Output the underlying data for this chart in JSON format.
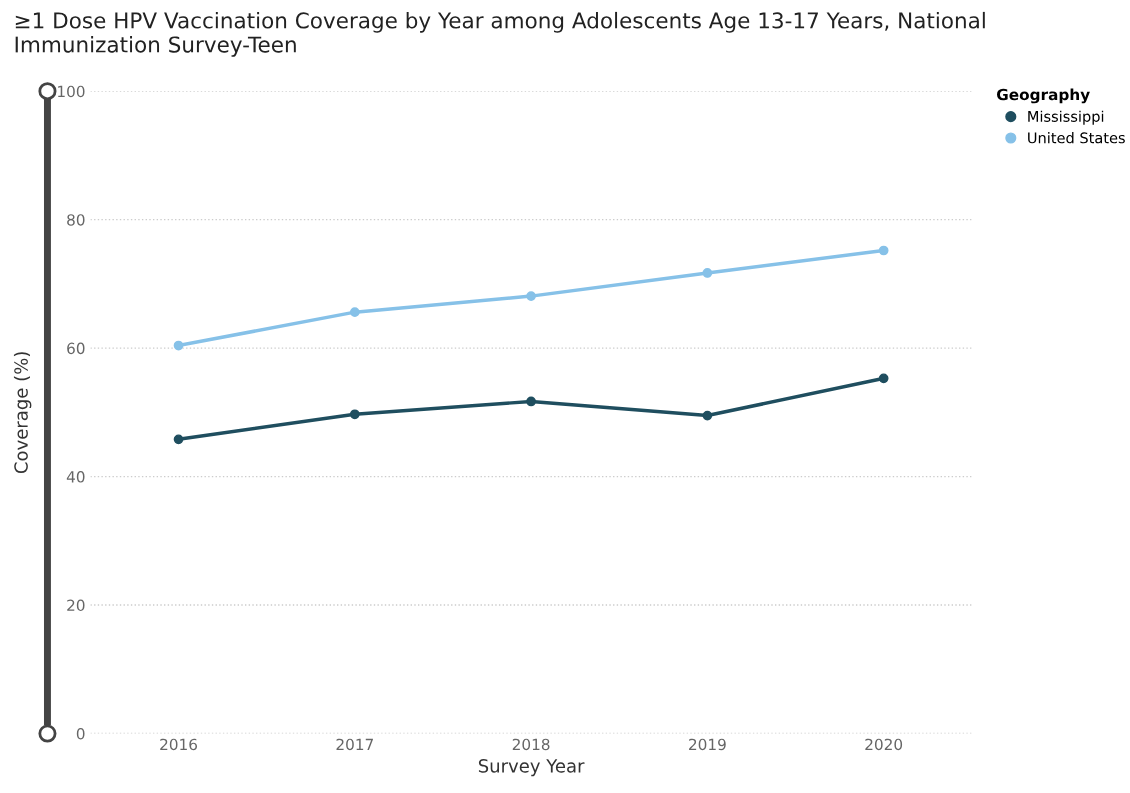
{
  "chart_data": {
    "type": "line",
    "title": "≥1 Dose HPV Vaccination Coverage by Year among Adolescents Age 13-17 Years, National Immunization Survey-Teen",
    "xlabel": "Survey Year",
    "ylabel": "Coverage (%)",
    "legend_title": "Geography",
    "categories": [
      "2016",
      "2017",
      "2018",
      "2019",
      "2020"
    ],
    "series": [
      {
        "name": "Mississippi",
        "color": "#1f4e5f",
        "values": [
          45.8,
          49.7,
          51.7,
          49.5,
          55.3
        ]
      },
      {
        "name": "United States",
        "color": "#86c1e8",
        "values": [
          60.4,
          65.6,
          68.1,
          71.7,
          75.2
        ]
      }
    ],
    "ylim": [
      0,
      100
    ],
    "yticks": [
      0,
      20,
      40,
      60,
      80,
      100
    ],
    "grid": "y",
    "legend": "top right",
    "marker": "circle",
    "line_style": "solid"
  }
}
